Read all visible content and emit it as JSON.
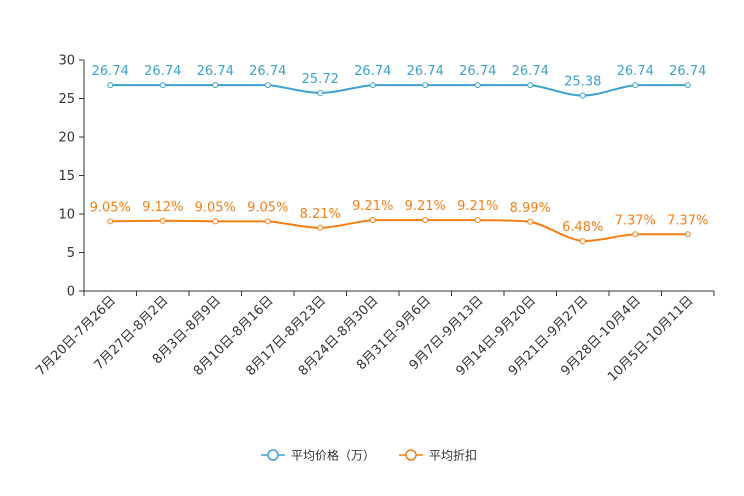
{
  "chart_data": {
    "type": "line",
    "title": "",
    "xlabel": "",
    "ylabel": "",
    "ylim": [
      0,
      30
    ],
    "yticks": [
      0,
      5,
      10,
      15,
      20,
      25,
      30
    ],
    "categories": [
      "7月20日-7月26日",
      "7月27日-8月2日",
      "8月3日-8月9日",
      "8月10日-8月16日",
      "8月17日-8月23日",
      "8月24日-8月30日",
      "8月31日-9月6日",
      "9月7日-9月13日",
      "9月14日-9月20日",
      "9月21日-9月27日",
      "9月28日-10月4日",
      "10月5日-10月11日"
    ],
    "series": [
      {
        "name": "平均价格（万）",
        "color": "#3ba1d1",
        "values": [
          26.74,
          26.74,
          26.74,
          26.74,
          25.72,
          26.74,
          26.74,
          26.74,
          26.74,
          25.38,
          26.74,
          26.74
        ],
        "labels": [
          "26.74",
          "26.74",
          "26.74",
          "26.74",
          "25.72",
          "26.74",
          "26.74",
          "26.74",
          "26.74",
          "25.38",
          "26.74",
          "26.74"
        ]
      },
      {
        "name": "平均折扣",
        "color": "#f57f17",
        "values": [
          9.05,
          9.12,
          9.05,
          9.05,
          8.21,
          9.21,
          9.21,
          9.21,
          8.99,
          6.48,
          7.37,
          7.37
        ],
        "labels": [
          "9.05%",
          "9.12%",
          "9.05%",
          "9.05%",
          "8.21%",
          "9.21%",
          "9.21%",
          "9.21%",
          "8.99%",
          "6.48%",
          "7.37%",
          "7.37%"
        ]
      }
    ],
    "legend_position": "bottom"
  }
}
